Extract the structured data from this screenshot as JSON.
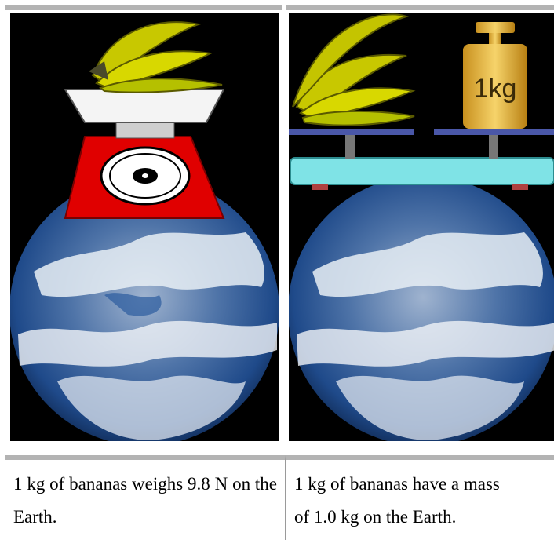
{
  "captions": {
    "left": "1 kg of bananas weighs 9.8 N on the Earth.",
    "right_line1": "1 kg of bananas have a mass",
    "right_line2": "of 1.0 kg on the Earth."
  },
  "weight_label": "1kg",
  "colors": {
    "scale_red": "#e00000",
    "balance_cyan": "#7fe3e6",
    "banana_yellow": "#d8d800",
    "ocean_blue": "#1f4f9a",
    "border_gray": "#b3b3b3"
  }
}
